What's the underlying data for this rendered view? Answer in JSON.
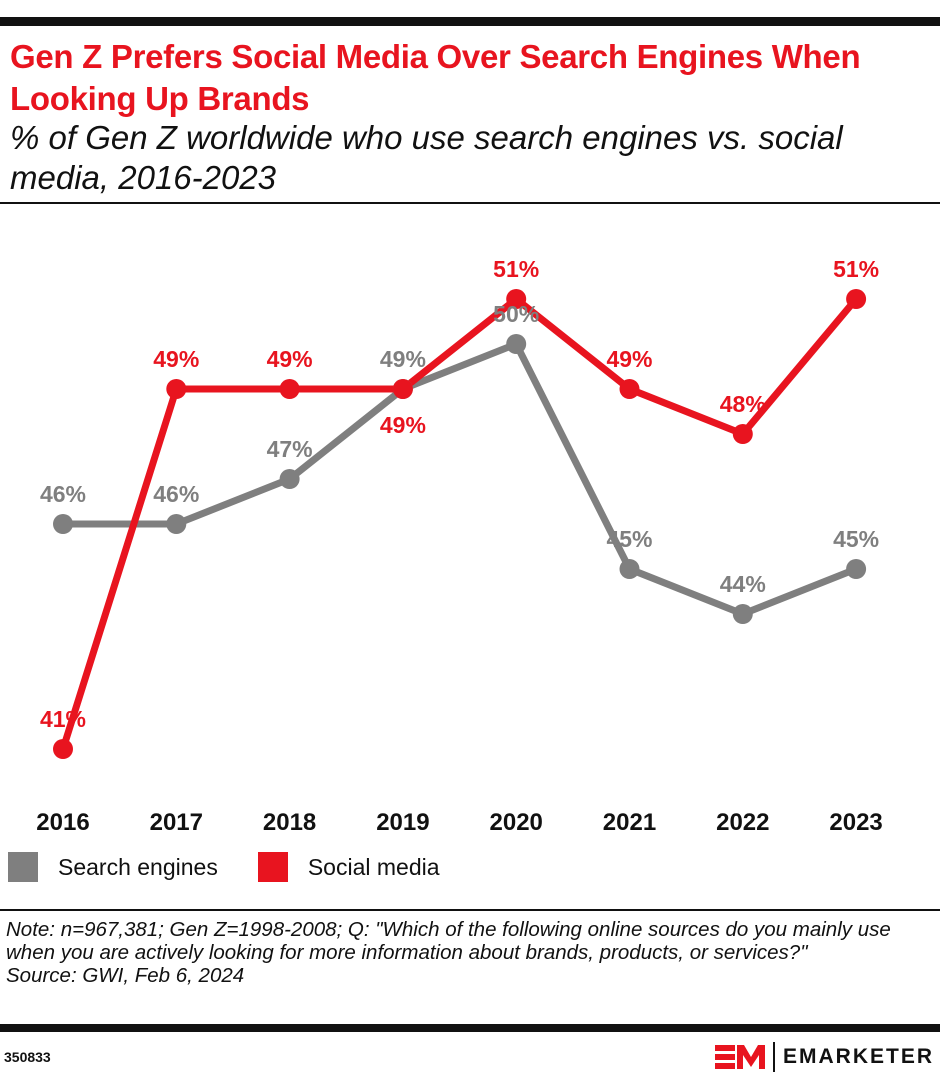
{
  "header": {
    "title": "Gen Z Prefers Social Media Over Search Engines When Looking Up Brands",
    "subtitle": "% of Gen Z worldwide who use search engines vs. social media, 2016-2023"
  },
  "chart_data": {
    "type": "line",
    "x": [
      "2016",
      "2017",
      "2018",
      "2019",
      "2020",
      "2021",
      "2022",
      "2023"
    ],
    "series": [
      {
        "name": "Search engines",
        "color": "#7f7f7f",
        "values": [
          46,
          46,
          47,
          49,
          50,
          45,
          44,
          45
        ]
      },
      {
        "name": "Social media",
        "color": "#e8141f",
        "values": [
          41,
          49,
          49,
          49,
          51,
          49,
          48,
          51
        ]
      }
    ],
    "value_suffix": "%",
    "ylim": [
      41,
      51
    ],
    "grid": false,
    "legend": "bottom-left",
    "data_labels": true
  },
  "footer": {
    "note": "Note: n=967,381; Gen Z=1998-2008; Q: \"Which of the following online sources do you mainly use when you are actively looking for more information about brands, products, or services?\"",
    "source": "Source: GWI, Feb 6, 2024",
    "chart_id": "350833",
    "brand": "EMARKETER"
  }
}
